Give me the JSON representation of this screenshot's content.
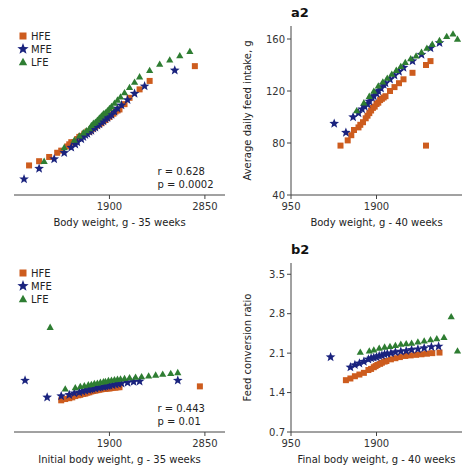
{
  "chart_data": [
    {
      "type": "scatter",
      "xlabel": "Body weight, g - 35 weeks",
      "annotation": "r = 0.628\np = 0.0002",
      "xlim": [
        950,
        3050
      ],
      "xticks": [
        1900,
        2850
      ],
      "ylim": [
        40,
        200
      ],
      "tick_labels": "x",
      "legend": "upper left",
      "series": [
        {
          "name": "HFE",
          "color": "#cd5c1e",
          "marker": "square",
          "x": [
            1100,
            1200,
            1300,
            1380,
            1420,
            1480,
            1500,
            1520,
            1550,
            1580,
            1600,
            1620,
            1650,
            1680,
            1700,
            1720,
            1730,
            1750,
            1760,
            1780,
            1800,
            1820,
            1840,
            1860,
            1880,
            1900,
            1920,
            1940,
            1960,
            1980,
            2000,
            2050,
            2100,
            2200,
            2300,
            2750
          ],
          "values": [
            68,
            72,
            76,
            80,
            82,
            86,
            88,
            90,
            90,
            93,
            95,
            96,
            98,
            100,
            100,
            102,
            103,
            104,
            105,
            106,
            107,
            108,
            110,
            111,
            113,
            114,
            116,
            117,
            119,
            120,
            121,
            126,
            132,
            140,
            148,
            162
          ]
        },
        {
          "name": "MFE",
          "color": "#1a237e",
          "marker": "star",
          "x": [
            1050,
            1200,
            1350,
            1450,
            1520,
            1560,
            1580,
            1620,
            1640,
            1660,
            1680,
            1700,
            1720,
            1740,
            1760,
            1780,
            1800,
            1820,
            1840,
            1860,
            1880,
            1900,
            1920,
            1950,
            1980,
            2020,
            2080,
            2150,
            2250,
            2550
          ],
          "values": [
            55,
            65,
            74,
            80,
            85,
            88,
            90,
            93,
            95,
            97,
            98,
            100,
            101,
            103,
            104,
            106,
            107,
            109,
            110,
            112,
            113,
            115,
            116,
            119,
            122,
            125,
            130,
            136,
            143,
            158
          ]
        },
        {
          "name": "LFE",
          "color": "#2e7d32",
          "marker": "triangle",
          "x": [
            1250,
            1450,
            1550,
            1600,
            1640,
            1670,
            1700,
            1720,
            1740,
            1760,
            1780,
            1800,
            1820,
            1840,
            1860,
            1880,
            1900,
            1920,
            1950,
            1980,
            2010,
            2050,
            2100,
            2150,
            2200,
            2300,
            2400,
            2500,
            2600,
            2700
          ],
          "values": [
            72,
            85,
            92,
            96,
            99,
            101,
            103,
            106,
            108,
            109,
            111,
            113,
            115,
            117,
            118,
            120,
            122,
            124,
            127,
            130,
            133,
            137,
            142,
            147,
            152,
            158,
            164,
            168,
            172,
            176
          ]
        }
      ]
    },
    {
      "type": "scatter",
      "title": "a2",
      "xlabel": "Body weight, g - 40 weeks",
      "ylabel": "Average daily feed intake, g",
      "xlim": [
        950,
        2850
      ],
      "xticks": [
        950,
        1900
      ],
      "ylim": [
        40,
        170
      ],
      "yticks": [
        40,
        80,
        120,
        160
      ],
      "series": [
        {
          "color": "#cd5c1e",
          "marker": "square",
          "x": [
            1500,
            1580,
            1620,
            1650,
            1700,
            1720,
            1750,
            1780,
            1800,
            1820,
            1840,
            1860,
            1880,
            1900,
            1920,
            1940,
            1960,
            1980,
            2000,
            2050,
            2100,
            2150,
            2200,
            2300,
            2450,
            2500,
            2450
          ],
          "values": [
            78,
            82,
            86,
            90,
            92,
            94,
            96,
            99,
            101,
            103,
            105,
            107,
            108,
            110,
            111,
            113,
            114,
            115,
            116,
            120,
            123,
            126,
            129,
            134,
            140,
            143,
            78
          ]
        },
        {
          "color": "#1a237e",
          "marker": "star",
          "x": [
            1430,
            1560,
            1640,
            1700,
            1740,
            1770,
            1800,
            1820,
            1850,
            1870,
            1900,
            1920,
            1950,
            1980,
            2000,
            2050,
            2100,
            2150,
            2200,
            2300,
            2400,
            2500,
            2600
          ],
          "values": [
            95,
            88,
            100,
            103,
            106,
            108,
            110,
            112,
            115,
            116,
            118,
            120,
            122,
            125,
            126,
            129,
            132,
            135,
            138,
            143,
            148,
            153,
            157
          ]
        },
        {
          "color": "#2e7d32",
          "marker": "triangle",
          "x": [
            1680,
            1760,
            1820,
            1870,
            1920,
            1970,
            2020,
            2070,
            2120,
            2170,
            2220,
            2280,
            2340,
            2400,
            2460,
            2520,
            2600,
            2680,
            2750,
            2800
          ],
          "values": [
            105,
            111,
            116,
            120,
            124,
            127,
            130,
            133,
            136,
            139,
            142,
            145,
            147,
            150,
            153,
            156,
            159,
            162,
            164,
            160
          ]
        }
      ]
    },
    {
      "type": "scatter",
      "xlabel": "Initial body weight, g - 35 weeks",
      "annotation": "r = 0.443\np = 0.01",
      "xlim": [
        950,
        3050
      ],
      "xticks": [
        1900,
        2850
      ],
      "ylim": [
        1,
        5
      ],
      "tick_labels": "x",
      "legend": "upper left",
      "series": [
        {
          "name": "HFE",
          "color": "#cd5c1e",
          "marker": "square",
          "x": [
            1420,
            1460,
            1500,
            1530,
            1560,
            1590,
            1610,
            1640,
            1660,
            1680,
            1700,
            1720,
            1740,
            1760,
            1780,
            1800,
            1820,
            1840,
            1860,
            1880,
            1900,
            1920,
            1940,
            1960,
            1980,
            2000,
            2800
          ],
          "values": [
            1.75,
            1.78,
            1.8,
            1.82,
            1.85,
            1.87,
            1.88,
            1.9,
            1.91,
            1.93,
            1.94,
            1.96,
            1.97,
            1.98,
            1.99,
            2.0,
            2.01,
            2.02,
            2.02,
            2.03,
            2.03,
            2.04,
            2.05,
            2.05,
            2.06,
            2.06,
            2.08
          ]
        },
        {
          "name": "MFE",
          "color": "#1a237e",
          "marker": "star",
          "x": [
            1060,
            1280,
            1420,
            1500,
            1550,
            1600,
            1630,
            1660,
            1690,
            1710,
            1730,
            1760,
            1790,
            1810,
            1840,
            1860,
            1880,
            1900,
            1930,
            1960,
            1990,
            2020,
            2080,
            2140,
            2200,
            2580
          ],
          "values": [
            2.22,
            1.82,
            1.85,
            1.88,
            1.92,
            1.94,
            1.96,
            1.98,
            2.0,
            2.01,
            2.02,
            2.03,
            2.05,
            2.06,
            2.07,
            2.08,
            2.09,
            2.1,
            2.11,
            2.13,
            2.14,
            2.15,
            2.17,
            2.19,
            2.2,
            2.22
          ]
        },
        {
          "name": "LFE",
          "color": "#2e7d32",
          "marker": "triangle",
          "x": [
            1310,
            1460,
            1560,
            1610,
            1650,
            1690,
            1720,
            1750,
            1780,
            1810,
            1840,
            1860,
            1890,
            1920,
            1950,
            1980,
            2010,
            2050,
            2100,
            2160,
            2220,
            2290,
            2360,
            2430,
            2510,
            2580
          ],
          "values": [
            3.48,
            2.02,
            2.05,
            2.08,
            2.1,
            2.12,
            2.13,
            2.15,
            2.16,
            2.18,
            2.19,
            2.2,
            2.22,
            2.23,
            2.24,
            2.25,
            2.26,
            2.27,
            2.29,
            2.3,
            2.31,
            2.33,
            2.35,
            2.37,
            2.39,
            2.41
          ]
        }
      ]
    },
    {
      "type": "scatter",
      "title": "b2",
      "xlabel": "Final body weight, g - 40 weeks",
      "ylabel": "Feed conversion ratio",
      "xlim": [
        950,
        2850
      ],
      "xticks": [
        950,
        1900
      ],
      "ylim": [
        0.7,
        3.7
      ],
      "yticks": [
        0.7,
        1.4,
        2.1,
        2.8,
        3.5
      ],
      "series": [
        {
          "color": "#cd5c1e",
          "marker": "square",
          "x": [
            1560,
            1610,
            1660,
            1710,
            1760,
            1810,
            1840,
            1870,
            1890,
            1910,
            1940,
            1960,
            1990,
            2010,
            2060,
            2110,
            2160,
            2220,
            2280,
            2340,
            2400,
            2460,
            2520,
            2600
          ],
          "values": [
            1.62,
            1.65,
            1.69,
            1.72,
            1.75,
            1.8,
            1.82,
            1.85,
            1.87,
            1.89,
            1.91,
            1.93,
            1.95,
            1.96,
            1.99,
            2.01,
            2.03,
            2.05,
            2.06,
            2.07,
            2.08,
            2.09,
            2.1,
            2.11
          ]
        },
        {
          "color": "#1a237e",
          "marker": "star",
          "x": [
            1390,
            1610,
            1660,
            1710,
            1760,
            1810,
            1840,
            1870,
            1900,
            1930,
            1960,
            1990,
            2020,
            2060,
            2110,
            2170,
            2230,
            2290,
            2360,
            2430,
            2510,
            2590
          ],
          "values": [
            2.03,
            1.85,
            1.89,
            1.92,
            1.95,
            1.99,
            2.01,
            2.02,
            2.03,
            2.05,
            2.06,
            2.08,
            2.09,
            2.1,
            2.12,
            2.13,
            2.14,
            2.16,
            2.17,
            2.19,
            2.21,
            2.22
          ]
        },
        {
          "color": "#2e7d32",
          "marker": "triangle",
          "x": [
            1720,
            1820,
            1870,
            1930,
            1990,
            2050,
            2110,
            2170,
            2230,
            2290,
            2360,
            2430,
            2500,
            2570,
            2650,
            2730,
            2800
          ],
          "values": [
            2.12,
            2.14,
            2.16,
            2.19,
            2.21,
            2.22,
            2.24,
            2.26,
            2.27,
            2.28,
            2.3,
            2.32,
            2.34,
            2.36,
            2.38,
            2.75,
            2.14
          ]
        }
      ]
    }
  ]
}
